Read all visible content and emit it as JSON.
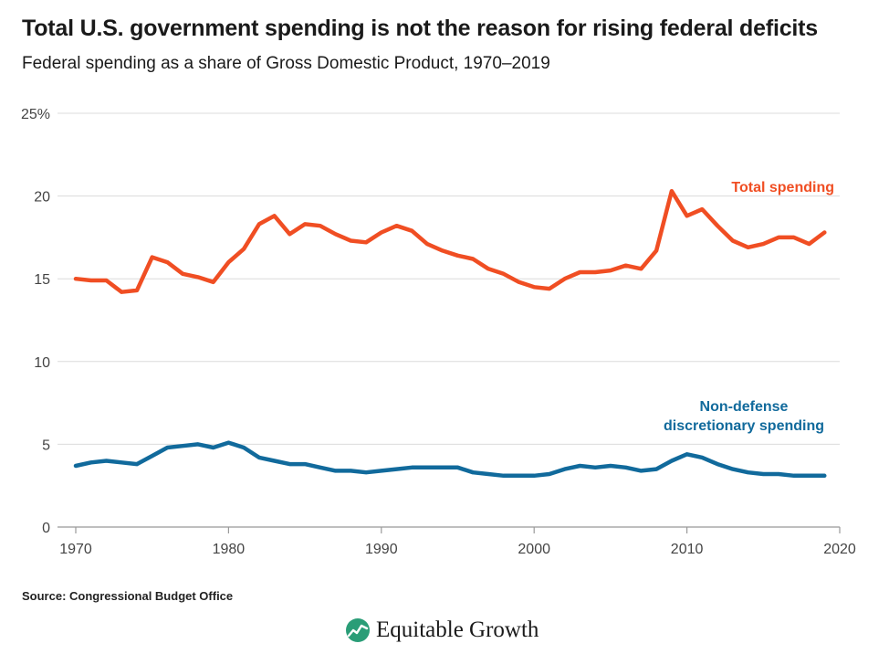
{
  "title": "Total U.S. government spending is not the reason for rising federal deficits",
  "subtitle": "Federal spending as a share of Gross Domestic Product, 1970–2019",
  "source": "Source: Congressional Budget Office",
  "brand": {
    "name": "Equitable Growth",
    "icon": "equitable-growth-logo-icon"
  },
  "colors": {
    "total": "#f04e23",
    "nondefense": "#116a9c",
    "grid": "#dcdcdc",
    "axis": "#999999"
  },
  "chart_data": {
    "type": "line",
    "x_range": [
      1970,
      2020
    ],
    "x_ticks": [
      1970,
      1980,
      1990,
      2000,
      2010,
      2020
    ],
    "x_tick_labels": [
      "1970",
      "1980",
      "1990",
      "2000",
      "2010",
      "2020"
    ],
    "y_range": [
      0,
      25
    ],
    "y_ticks": [
      0,
      5,
      10,
      15,
      20,
      25
    ],
    "y_tick_labels": [
      "0",
      "5",
      "10",
      "15",
      "20",
      "25%"
    ],
    "grid": "horizontal",
    "x": [
      1970,
      1971,
      1972,
      1973,
      1974,
      1975,
      1976,
      1977,
      1978,
      1979,
      1980,
      1981,
      1982,
      1983,
      1984,
      1985,
      1986,
      1987,
      1988,
      1989,
      1990,
      1991,
      1992,
      1993,
      1994,
      1995,
      1996,
      1997,
      1998,
      1999,
      2000,
      2001,
      2002,
      2003,
      2004,
      2005,
      2006,
      2007,
      2008,
      2009,
      2010,
      2011,
      2012,
      2013,
      2014,
      2015,
      2016,
      2017,
      2018,
      2019
    ],
    "series": [
      {
        "key": "total",
        "name": "Total spending",
        "values": [
          15.0,
          14.9,
          14.9,
          14.2,
          14.3,
          16.3,
          16.0,
          15.3,
          15.1,
          14.8,
          16.0,
          16.8,
          18.3,
          18.8,
          17.7,
          18.3,
          18.2,
          17.7,
          17.3,
          17.2,
          17.8,
          18.2,
          17.9,
          17.1,
          16.7,
          16.4,
          16.2,
          15.6,
          15.3,
          14.8,
          14.5,
          14.4,
          15.0,
          15.4,
          15.4,
          15.5,
          15.8,
          15.6,
          16.7,
          20.3,
          18.8,
          19.2,
          18.2,
          17.3,
          16.9,
          17.1,
          17.5,
          17.5,
          17.1,
          17.8
        ]
      },
      {
        "key": "nondefense",
        "name": "Non-defense discretionary spending",
        "name_lines": [
          "Non-defense",
          "discretionary spending"
        ],
        "values": [
          3.7,
          3.9,
          4.0,
          3.9,
          3.8,
          4.3,
          4.8,
          4.9,
          5.0,
          4.8,
          5.1,
          4.8,
          4.2,
          4.0,
          3.8,
          3.8,
          3.6,
          3.4,
          3.4,
          3.3,
          3.4,
          3.5,
          3.6,
          3.6,
          3.6,
          3.6,
          3.3,
          3.2,
          3.1,
          3.1,
          3.1,
          3.2,
          3.5,
          3.7,
          3.6,
          3.7,
          3.6,
          3.4,
          3.5,
          4.0,
          4.4,
          4.2,
          3.8,
          3.5,
          3.3,
          3.2,
          3.2,
          3.1,
          3.1,
          3.1
        ]
      }
    ]
  }
}
